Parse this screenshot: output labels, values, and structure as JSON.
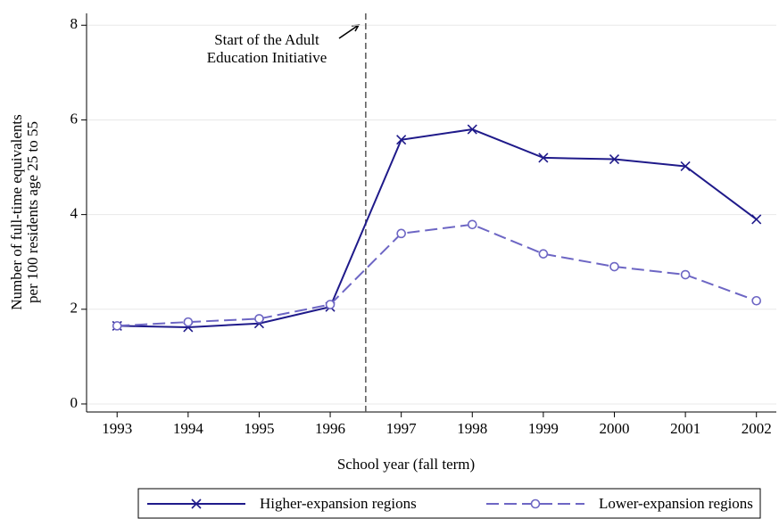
{
  "chart_data": {
    "type": "line",
    "x": [
      1993,
      1994,
      1995,
      1996,
      1997,
      1998,
      1999,
      2000,
      2001,
      2002
    ],
    "series": [
      {
        "name": "Higher-expansion regions",
        "color": "#1f1a8a",
        "marker": "x",
        "dash": false,
        "values": [
          1.65,
          1.62,
          1.7,
          2.05,
          5.58,
          5.8,
          5.2,
          5.17,
          5.02,
          3.9
        ]
      },
      {
        "name": "Lower-expansion regions",
        "color": "#6d66c4",
        "marker": "circle",
        "dash": true,
        "values": [
          1.65,
          1.73,
          1.8,
          2.1,
          3.6,
          3.79,
          3.17,
          2.9,
          2.73,
          2.18
        ]
      }
    ],
    "xlim": [
      1992.57,
      2002.28
    ],
    "ylim": [
      -0.17,
      8.25
    ],
    "xticks": [
      1993,
      1994,
      1995,
      1996,
      1997,
      1998,
      1999,
      2000,
      2001,
      2002
    ],
    "yticks": [
      0,
      2,
      4,
      6,
      8
    ],
    "grid": true,
    "xlabel": "School year (fall term)",
    "ylabel": [
      "Number of full-time equivalents",
      "per 100 residents age 25 to 55"
    ],
    "vline": 1996.5,
    "annotation": [
      "Start of the Adult",
      "Education Initiative"
    ],
    "legend": "bottom"
  }
}
